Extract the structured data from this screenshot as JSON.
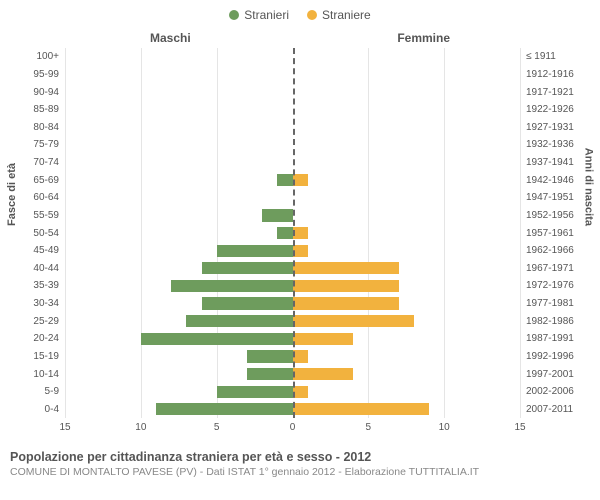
{
  "legend": [
    {
      "label": "Stranieri",
      "color": "#6e9c5d"
    },
    {
      "label": "Straniere",
      "color": "#f2b23e"
    }
  ],
  "side_titles": {
    "left": "Maschi",
    "right": "Femmine"
  },
  "y_axis_labels": {
    "left": "Fasce di età",
    "right": "Anni di nascita"
  },
  "x_axis": {
    "max": 15,
    "ticks": [
      15,
      10,
      5,
      0,
      5,
      10,
      15
    ]
  },
  "chart": {
    "type": "population-pyramid",
    "male_color": "#6e9c5d",
    "female_color": "#f2b23e",
    "grid_color": "#e5e5e5",
    "center_line_color": "#666666",
    "background_color": "#ffffff",
    "label_fontsize": 10,
    "title_fontsize": 12
  },
  "rows": [
    {
      "age": "100+",
      "years": "≤ 1911",
      "m": 0,
      "f": 0
    },
    {
      "age": "95-99",
      "years": "1912-1916",
      "m": 0,
      "f": 0
    },
    {
      "age": "90-94",
      "years": "1917-1921",
      "m": 0,
      "f": 0
    },
    {
      "age": "85-89",
      "years": "1922-1926",
      "m": 0,
      "f": 0
    },
    {
      "age": "80-84",
      "years": "1927-1931",
      "m": 0,
      "f": 0
    },
    {
      "age": "75-79",
      "years": "1932-1936",
      "m": 0,
      "f": 0
    },
    {
      "age": "70-74",
      "years": "1937-1941",
      "m": 0,
      "f": 0
    },
    {
      "age": "65-69",
      "years": "1942-1946",
      "m": 1,
      "f": 1
    },
    {
      "age": "60-64",
      "years": "1947-1951",
      "m": 0,
      "f": 0
    },
    {
      "age": "55-59",
      "years": "1952-1956",
      "m": 2,
      "f": 0
    },
    {
      "age": "50-54",
      "years": "1957-1961",
      "m": 1,
      "f": 1
    },
    {
      "age": "45-49",
      "years": "1962-1966",
      "m": 5,
      "f": 1
    },
    {
      "age": "40-44",
      "years": "1967-1971",
      "m": 6,
      "f": 7
    },
    {
      "age": "35-39",
      "years": "1972-1976",
      "m": 8,
      "f": 7
    },
    {
      "age": "30-34",
      "years": "1977-1981",
      "m": 6,
      "f": 7
    },
    {
      "age": "25-29",
      "years": "1982-1986",
      "m": 7,
      "f": 8
    },
    {
      "age": "20-24",
      "years": "1987-1991",
      "m": 10,
      "f": 4
    },
    {
      "age": "15-19",
      "years": "1992-1996",
      "m": 3,
      "f": 1
    },
    {
      "age": "10-14",
      "years": "1997-2001",
      "m": 3,
      "f": 4
    },
    {
      "age": "5-9",
      "years": "2002-2006",
      "m": 5,
      "f": 1
    },
    {
      "age": "0-4",
      "years": "2007-2011",
      "m": 9,
      "f": 9
    }
  ],
  "footer": {
    "line1": "Popolazione per cittadinanza straniera per età e sesso - 2012",
    "line2": "COMUNE DI MONTALTO PAVESE (PV) - Dati ISTAT 1° gennaio 2012 - Elaborazione TUTTITALIA.IT"
  }
}
